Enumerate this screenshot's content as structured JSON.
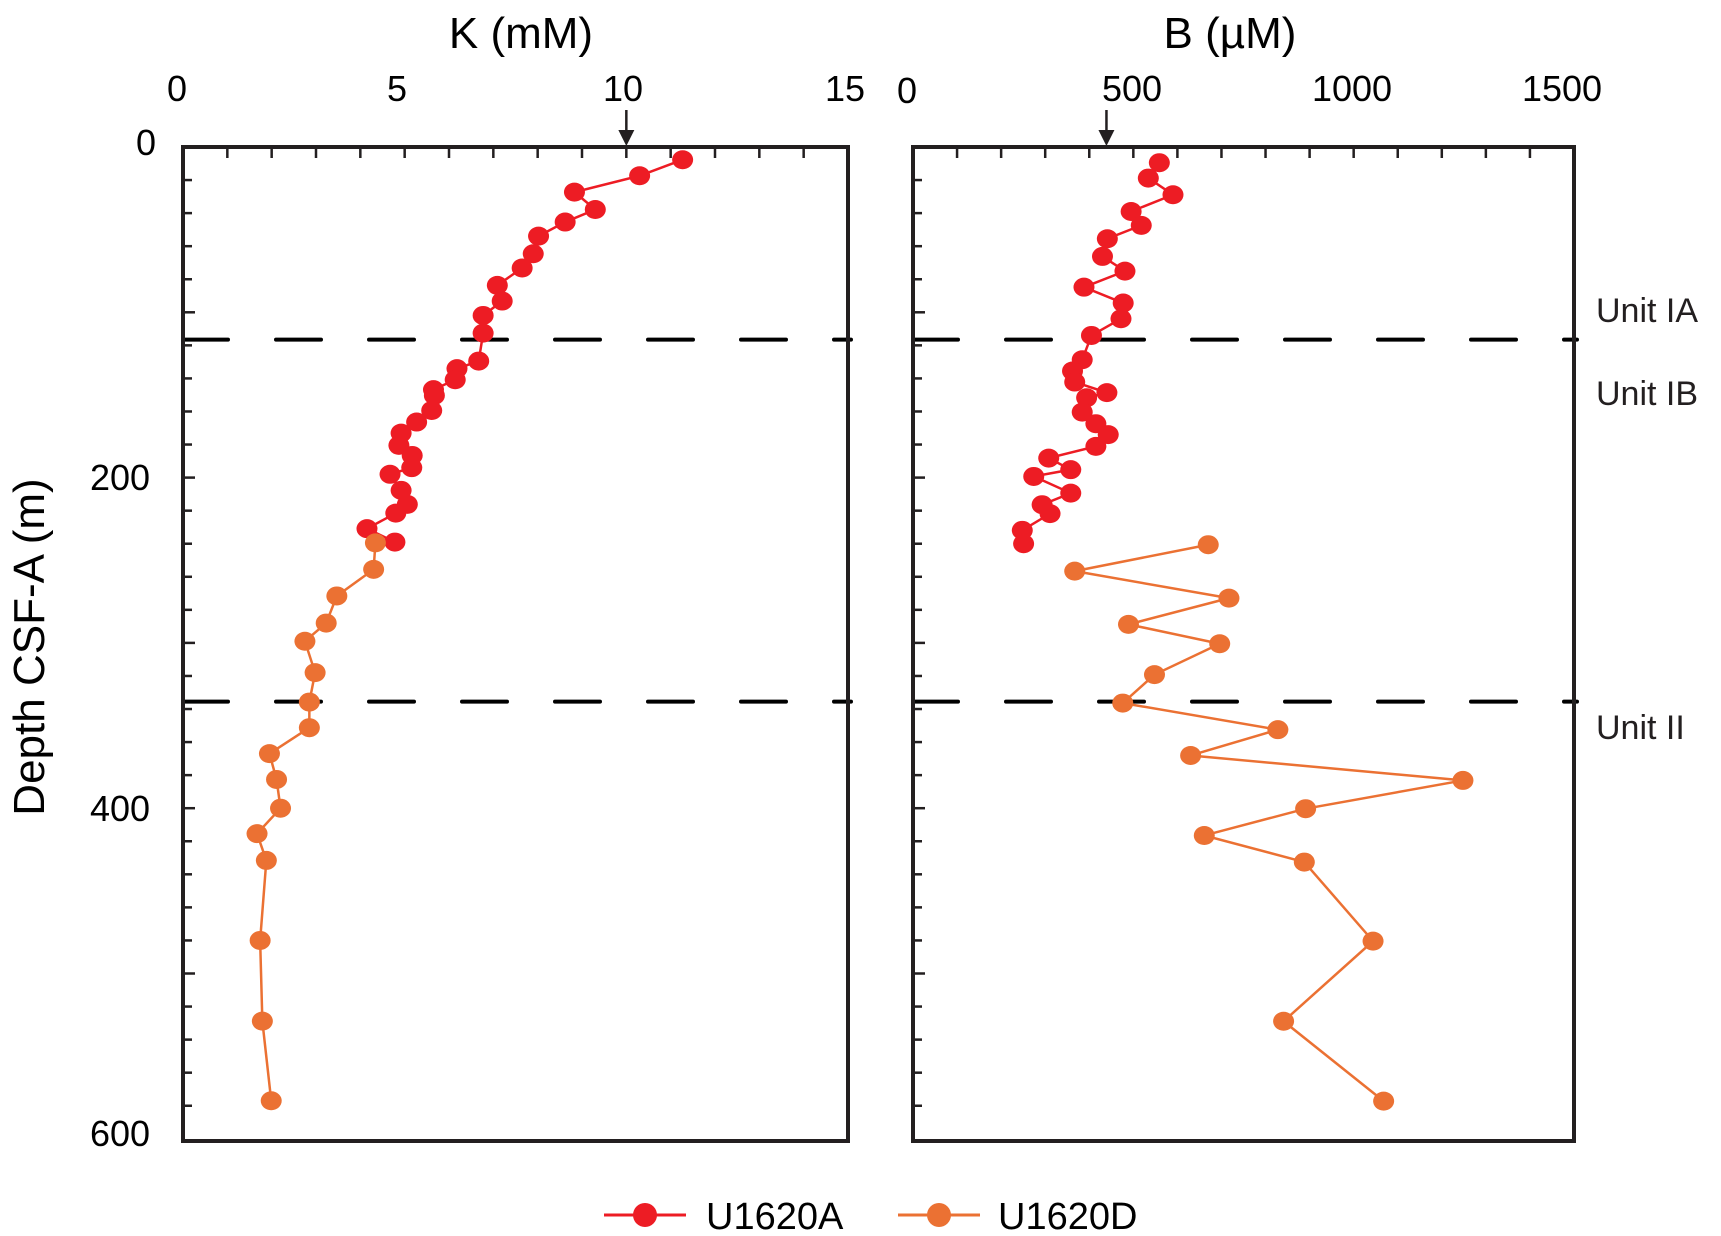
{
  "chart_data": [
    {
      "type": "line",
      "panel": "potassium",
      "title": "K (mM)",
      "xlabel": "K (mM)",
      "ylabel": "Depth CSF-A (m)",
      "xlim": [
        0,
        15
      ],
      "ylim": [
        600,
        0
      ],
      "x_ticks": [
        0,
        5,
        10,
        15
      ],
      "x_tick_labels": [
        "0",
        "5",
        "10",
        "15"
      ],
      "y_ticks": [
        0,
        200,
        400,
        600
      ],
      "y_tick_labels": [
        "0",
        "200",
        "400",
        "600"
      ],
      "x_minor_step": 1,
      "y_minor_step": 20,
      "x_axis_position": "top",
      "grid": false,
      "reference_arrow": {
        "value": 10,
        "description": "seawater value marker"
      },
      "series": [
        {
          "name": "U1620A",
          "color": "#ed1c24",
          "points": [
            {
              "depth": 7.7,
              "value": 11.27
            },
            {
              "depth": 17.4,
              "value": 10.3
            },
            {
              "depth": 27.3,
              "value": 8.83
            },
            {
              "depth": 37.8,
              "value": 9.3
            },
            {
              "depth": 45.4,
              "value": 8.62
            },
            {
              "depth": 53.9,
              "value": 8.02
            },
            {
              "depth": 64.6,
              "value": 7.9
            },
            {
              "depth": 73.2,
              "value": 7.65
            },
            {
              "depth": 83.7,
              "value": 7.09
            },
            {
              "depth": 93.2,
              "value": 7.2
            },
            {
              "depth": 101.9,
              "value": 6.77
            },
            {
              "depth": 112.6,
              "value": 6.77
            },
            {
              "depth": 129.5,
              "value": 6.67
            },
            {
              "depth": 134.1,
              "value": 6.18
            },
            {
              "depth": 140.8,
              "value": 6.14
            },
            {
              "depth": 146.8,
              "value": 5.65
            },
            {
              "depth": 150.3,
              "value": 5.67
            },
            {
              "depth": 159.4,
              "value": 5.61
            },
            {
              "depth": 166.4,
              "value": 5.27
            },
            {
              "depth": 173.1,
              "value": 4.92
            },
            {
              "depth": 180.5,
              "value": 4.87
            },
            {
              "depth": 186.6,
              "value": 5.17
            },
            {
              "depth": 194.0,
              "value": 5.16
            },
            {
              "depth": 198.0,
              "value": 4.67
            },
            {
              "depth": 207.7,
              "value": 4.92
            },
            {
              "depth": 216.2,
              "value": 5.06
            },
            {
              "depth": 221.5,
              "value": 4.8
            },
            {
              "depth": 230.9,
              "value": 4.15
            },
            {
              "depth": 239.0,
              "value": 4.78
            }
          ]
        },
        {
          "name": "U1620D",
          "color": "#eb7133",
          "points": [
            {
              "depth": 239.5,
              "value": 4.34
            },
            {
              "depth": 255.5,
              "value": 4.3
            },
            {
              "depth": 271.6,
              "value": 3.47
            },
            {
              "depth": 288.0,
              "value": 3.23
            },
            {
              "depth": 299.0,
              "value": 2.75
            },
            {
              "depth": 318.0,
              "value": 2.98
            },
            {
              "depth": 335.8,
              "value": 2.85
            },
            {
              "depth": 351.3,
              "value": 2.85
            },
            {
              "depth": 367.0,
              "value": 1.95
            },
            {
              "depth": 382.6,
              "value": 2.11
            },
            {
              "depth": 400.0,
              "value": 2.2
            },
            {
              "depth": 415.4,
              "value": 1.67
            },
            {
              "depth": 431.6,
              "value": 1.88
            },
            {
              "depth": 480.0,
              "value": 1.74
            },
            {
              "depth": 528.8,
              "value": 1.79
            },
            {
              "depth": 577.0,
              "value": 1.99
            }
          ]
        }
      ]
    },
    {
      "type": "line",
      "panel": "boron",
      "title": "B (µM)",
      "xlabel": "B (µM)",
      "ylabel": "Depth CSF-A (m)",
      "xlim": [
        0,
        1500
      ],
      "ylim": [
        600,
        0
      ],
      "x_ticks": [
        0,
        500,
        1000,
        1500
      ],
      "x_tick_labels": [
        "0",
        "500",
        "1000",
        "1500"
      ],
      "y_ticks": [
        0,
        200,
        400,
        600
      ],
      "x_minor_step": 100,
      "y_minor_step": 20,
      "x_axis_position": "top",
      "grid": false,
      "reference_arrow": {
        "value": 439,
        "description": "seawater value marker"
      },
      "series": [
        {
          "name": "U1620A",
          "color": "#ed1c24",
          "points": [
            {
              "depth": 9.5,
              "value": 559
            },
            {
              "depth": 18.8,
              "value": 534
            },
            {
              "depth": 28.9,
              "value": 590
            },
            {
              "depth": 39.0,
              "value": 495
            },
            {
              "depth": 47.4,
              "value": 518
            },
            {
              "depth": 55.5,
              "value": 441
            },
            {
              "depth": 66.2,
              "value": 430
            },
            {
              "depth": 75.1,
              "value": 481
            },
            {
              "depth": 84.8,
              "value": 388
            },
            {
              "depth": 94.4,
              "value": 477
            },
            {
              "depth": 103.9,
              "value": 472
            },
            {
              "depth": 114.0,
              "value": 405
            },
            {
              "depth": 128.7,
              "value": 384
            },
            {
              "depth": 135.5,
              "value": 362
            },
            {
              "depth": 142.2,
              "value": 367
            },
            {
              "depth": 148.6,
              "value": 440
            },
            {
              "depth": 151.7,
              "value": 394
            },
            {
              "depth": 160.4,
              "value": 384
            },
            {
              "depth": 167.4,
              "value": 415
            },
            {
              "depth": 174.0,
              "value": 443
            },
            {
              "depth": 181.1,
              "value": 415
            },
            {
              "depth": 188.2,
              "value": 308
            },
            {
              "depth": 195.2,
              "value": 358
            },
            {
              "depth": 199.3,
              "value": 274
            },
            {
              "depth": 209.4,
              "value": 358
            },
            {
              "depth": 216.4,
              "value": 293
            },
            {
              "depth": 221.8,
              "value": 311
            },
            {
              "depth": 231.9,
              "value": 248
            },
            {
              "depth": 240.0,
              "value": 251
            }
          ]
        },
        {
          "name": "U1620D",
          "color": "#eb7133",
          "points": [
            {
              "depth": 240.6,
              "value": 670
            },
            {
              "depth": 256.6,
              "value": 367
            },
            {
              "depth": 272.9,
              "value": 717
            },
            {
              "depth": 288.8,
              "value": 489
            },
            {
              "depth": 300.5,
              "value": 696
            },
            {
              "depth": 319.2,
              "value": 548
            },
            {
              "depth": 336.4,
              "value": 476
            },
            {
              "depth": 352.5,
              "value": 828
            },
            {
              "depth": 368.1,
              "value": 630
            },
            {
              "depth": 383.2,
              "value": 1248
            },
            {
              "depth": 400.3,
              "value": 891
            },
            {
              "depth": 416.5,
              "value": 661
            },
            {
              "depth": 432.6,
              "value": 888
            },
            {
              "depth": 480.4,
              "value": 1044
            },
            {
              "depth": 528.9,
              "value": 841
            },
            {
              "depth": 577.2,
              "value": 1068
            }
          ]
        }
      ]
    }
  ],
  "shared": {
    "ylabel": "Depth CSF-A (m)",
    "unit_boundaries": [
      {
        "depth": 116.5,
        "style": "dashed"
      },
      {
        "depth": 335.5,
        "style": "dashed"
      }
    ],
    "unit_labels": [
      {
        "text": "Unit IA",
        "depth": 98
      },
      {
        "text": "Unit IB",
        "depth": 149
      },
      {
        "text": "Unit II",
        "depth": 351
      }
    ],
    "legend": {
      "placement": "bottom-center",
      "entries": [
        {
          "label": "U1620A",
          "color": "#ed1c24"
        },
        {
          "label": "U1620D",
          "color": "#eb7133"
        }
      ]
    }
  }
}
